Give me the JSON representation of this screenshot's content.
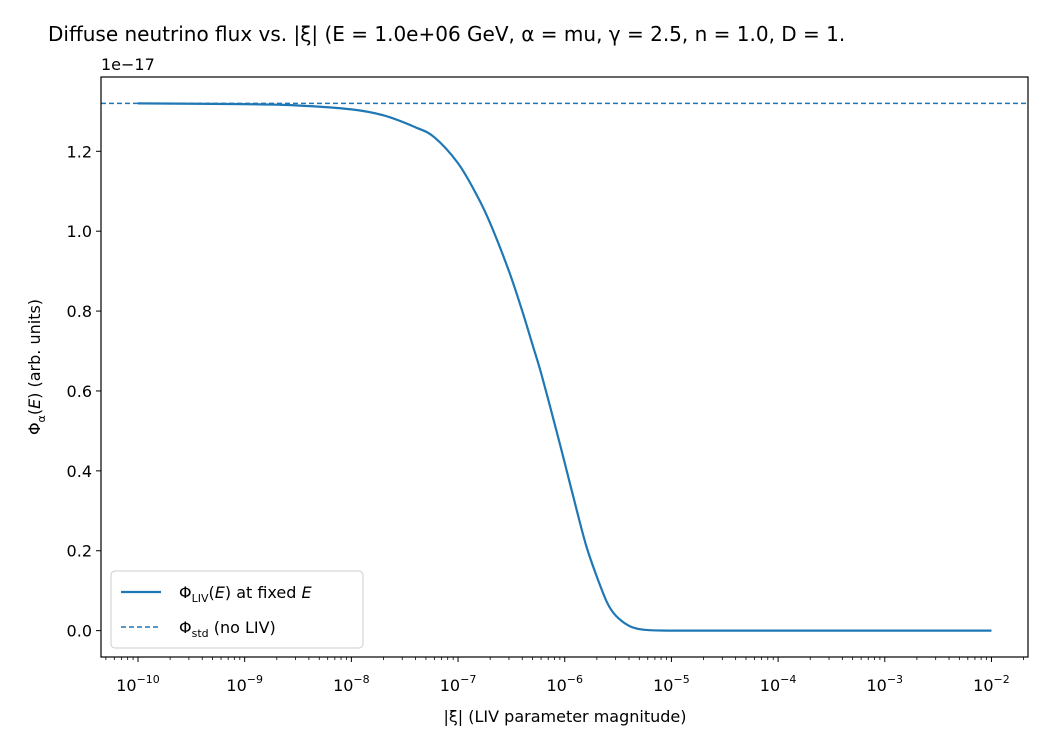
{
  "chart_data": {
    "type": "line",
    "title": "Diffuse neutrino flux vs. |ξ|  (E = 1.0e+06 GeV, α = mu, γ = 2.5, n = 1.0, D = 1.",
    "xlabel": "|ξ| (LIV parameter magnitude)",
    "ylabel": "Φα(E)  (arb. units)",
    "x_scale": "log",
    "xlim": [
      4.5e-11,
      0.022
    ],
    "ylim": [
      -0.066,
      1.386
    ],
    "y_offset_label": "1e−17",
    "x_ticks": [
      {
        "value": 1e-10,
        "base": "10",
        "exp": "−10"
      },
      {
        "value": 1e-09,
        "base": "10",
        "exp": "−9"
      },
      {
        "value": 1e-08,
        "base": "10",
        "exp": "−8"
      },
      {
        "value": 1e-07,
        "base": "10",
        "exp": "−7"
      },
      {
        "value": 1e-06,
        "base": "10",
        "exp": "−6"
      },
      {
        "value": 1e-05,
        "base": "10",
        "exp": "−5"
      },
      {
        "value": 0.0001,
        "base": "10",
        "exp": "−4"
      },
      {
        "value": 0.001,
        "base": "10",
        "exp": "−3"
      },
      {
        "value": 0.01,
        "base": "10",
        "exp": "−2"
      }
    ],
    "y_ticks": [
      {
        "value": 0.0,
        "label": "0.0"
      },
      {
        "value": 0.2,
        "label": "0.2"
      },
      {
        "value": 0.4,
        "label": "0.4"
      },
      {
        "value": 0.6,
        "label": "0.6"
      },
      {
        "value": 0.8,
        "label": "0.8"
      },
      {
        "value": 1.0,
        "label": "1.0"
      },
      {
        "value": 1.2,
        "label": "1.2"
      }
    ],
    "grid": false,
    "legend_position": "lower-left",
    "colors": {
      "series": "#1f77b4"
    },
    "series": [
      {
        "name": "ΦLIV(E) at fixed E",
        "style": "solid",
        "x": [
          1e-10,
          1e-09,
          3e-09,
          1e-08,
          2e-08,
          4e-08,
          6e-08,
          1e-07,
          1.5e-07,
          2e-07,
          3e-07,
          4e-07,
          5e-07,
          6e-07,
          8e-07,
          1e-06,
          1.3e-06,
          1.6e-06,
          2e-06,
          2.5e-06,
          3e-06,
          4e-06,
          5e-06,
          6e-06,
          8e-06,
          1e-05,
          2e-05,
          0.0001,
          0.001,
          0.01
        ],
        "y": [
          1.32,
          1.318,
          1.315,
          1.305,
          1.29,
          1.26,
          1.235,
          1.17,
          1.09,
          1.02,
          0.9,
          0.8,
          0.715,
          0.645,
          0.52,
          0.42,
          0.3,
          0.21,
          0.135,
          0.07,
          0.038,
          0.012,
          0.004,
          0.0015,
          0.0003,
          0.0001,
          0.0,
          0.0,
          0.0,
          0.0
        ]
      },
      {
        "name": "Φstd (no LIV)",
        "style": "dashed",
        "y_constant": 1.32
      }
    ],
    "legend": [
      {
        "main": "Φ",
        "sub": "LIV",
        "rest": "(E) at fixed E"
      },
      {
        "main": "Φ",
        "sub": "std",
        "rest": " (no LIV)"
      }
    ]
  }
}
